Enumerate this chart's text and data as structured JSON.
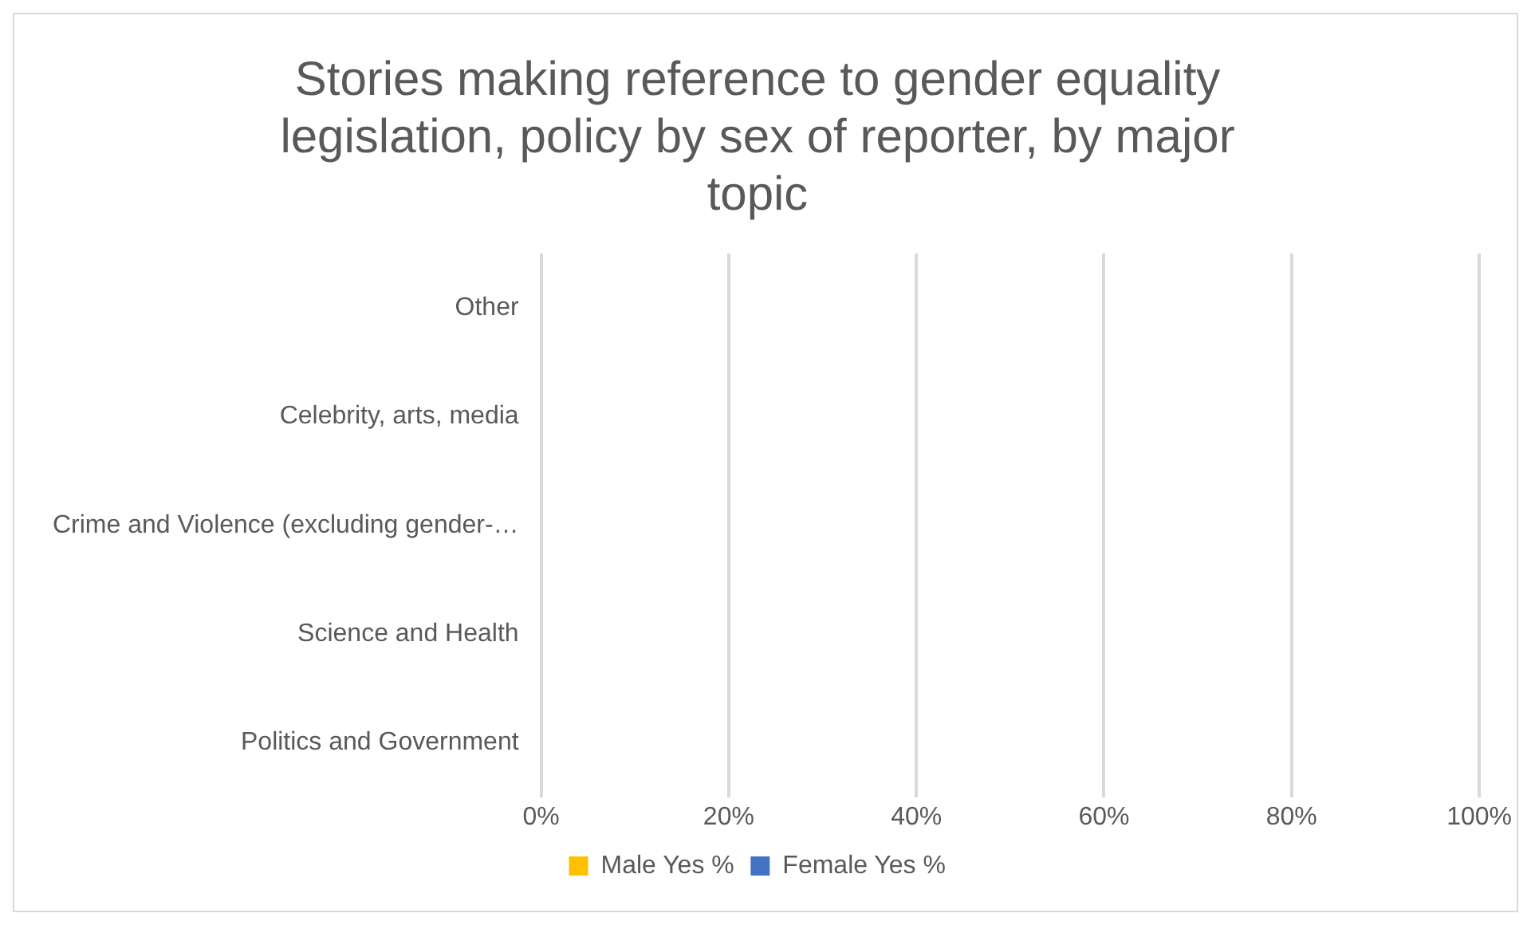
{
  "chart_data": {
    "type": "bar",
    "orientation": "horizontal",
    "title": "Stories making reference to gender equality legislation, policy by sex of reporter, by major topic",
    "categories": [
      "Other",
      "Celebrity, arts, media",
      "Crime and Violence (excluding gender-…",
      "Science and Health",
      "Politics and Government"
    ],
    "series": [
      {
        "name": "Male Yes %",
        "color": "#ffc000",
        "values": [
          0,
          0,
          0,
          0,
          0
        ]
      },
      {
        "name": "Female Yes %",
        "color": "#4472c4",
        "values": [
          0,
          0,
          0,
          0,
          0
        ]
      }
    ],
    "xlim": [
      0,
      100
    ],
    "xticks": [
      {
        "value": 0,
        "label": "0%"
      },
      {
        "value": 20,
        "label": "20%"
      },
      {
        "value": 40,
        "label": "40%"
      },
      {
        "value": 60,
        "label": "60%"
      },
      {
        "value": 80,
        "label": "80%"
      },
      {
        "value": 100,
        "label": "100%"
      }
    ],
    "grid": "x",
    "legend": "bottom"
  }
}
